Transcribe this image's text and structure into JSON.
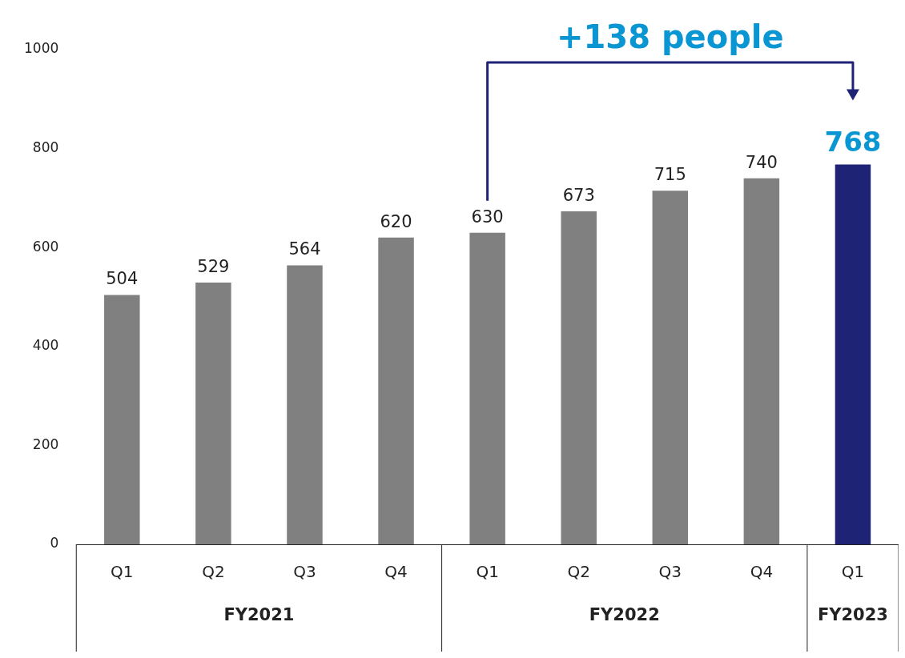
{
  "chart_data": {
    "type": "bar",
    "categories": [
      "Q1",
      "Q2",
      "Q3",
      "Q4",
      "Q1",
      "Q2",
      "Q3",
      "Q4",
      "Q1"
    ],
    "values": [
      504,
      529,
      564,
      620,
      630,
      673,
      715,
      740,
      768
    ],
    "colors": [
      "#808080",
      "#808080",
      "#808080",
      "#808080",
      "#808080",
      "#808080",
      "#808080",
      "#808080",
      "#1f2375"
    ],
    "ylim": [
      0,
      1000
    ],
    "yticks": [
      0,
      200,
      400,
      600,
      800,
      1000
    ],
    "grid": false,
    "legend": false,
    "data_labels": true,
    "annotations": [
      "+138 people",
      "FY2021",
      "FY2022",
      "FY2023"
    ]
  }
}
